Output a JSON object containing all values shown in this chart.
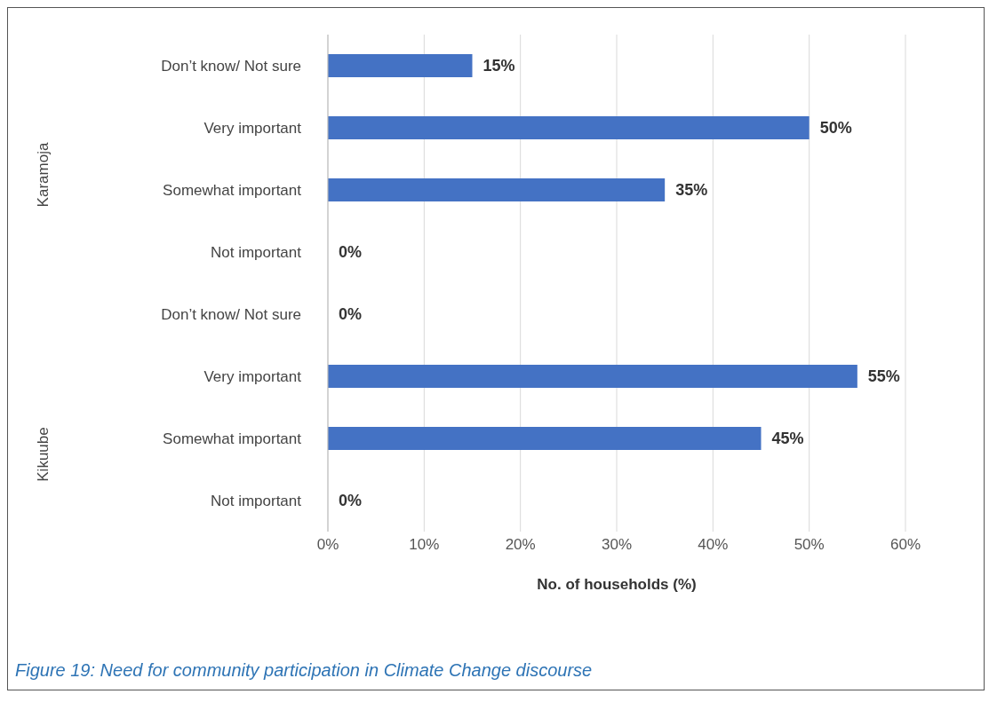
{
  "chart_data": {
    "type": "bar",
    "orientation": "horizontal",
    "categories": [
      "Don’t know/ Not sure",
      "Very important",
      "Somewhat important",
      "Not important",
      "Don’t know/ Not sure",
      "Very important",
      "Somewhat important",
      "Not important"
    ],
    "values": [
      15,
      50,
      35,
      0,
      0,
      55,
      45,
      0
    ],
    "value_labels": [
      "15%",
      "50%",
      "35%",
      "0%",
      "0%",
      "55%",
      "45%",
      "0%"
    ],
    "color": "#4472c4",
    "xlim": [
      0,
      60
    ],
    "xticks": [
      {
        "value": 0,
        "label": "0%"
      },
      {
        "value": 10,
        "label": "10%"
      },
      {
        "value": 20,
        "label": "20%"
      },
      {
        "value": 30,
        "label": "30%"
      },
      {
        "value": 40,
        "label": "40%"
      },
      {
        "value": 50,
        "label": "50%"
      },
      {
        "value": 60,
        "label": "60%"
      }
    ],
    "xlabel": "No. of households (%)",
    "grid": "x",
    "annotations": [
      "Karamoja",
      "Kikuube",
      "Figure 19: Need for community participation in Climate Change discourse"
    ]
  }
}
